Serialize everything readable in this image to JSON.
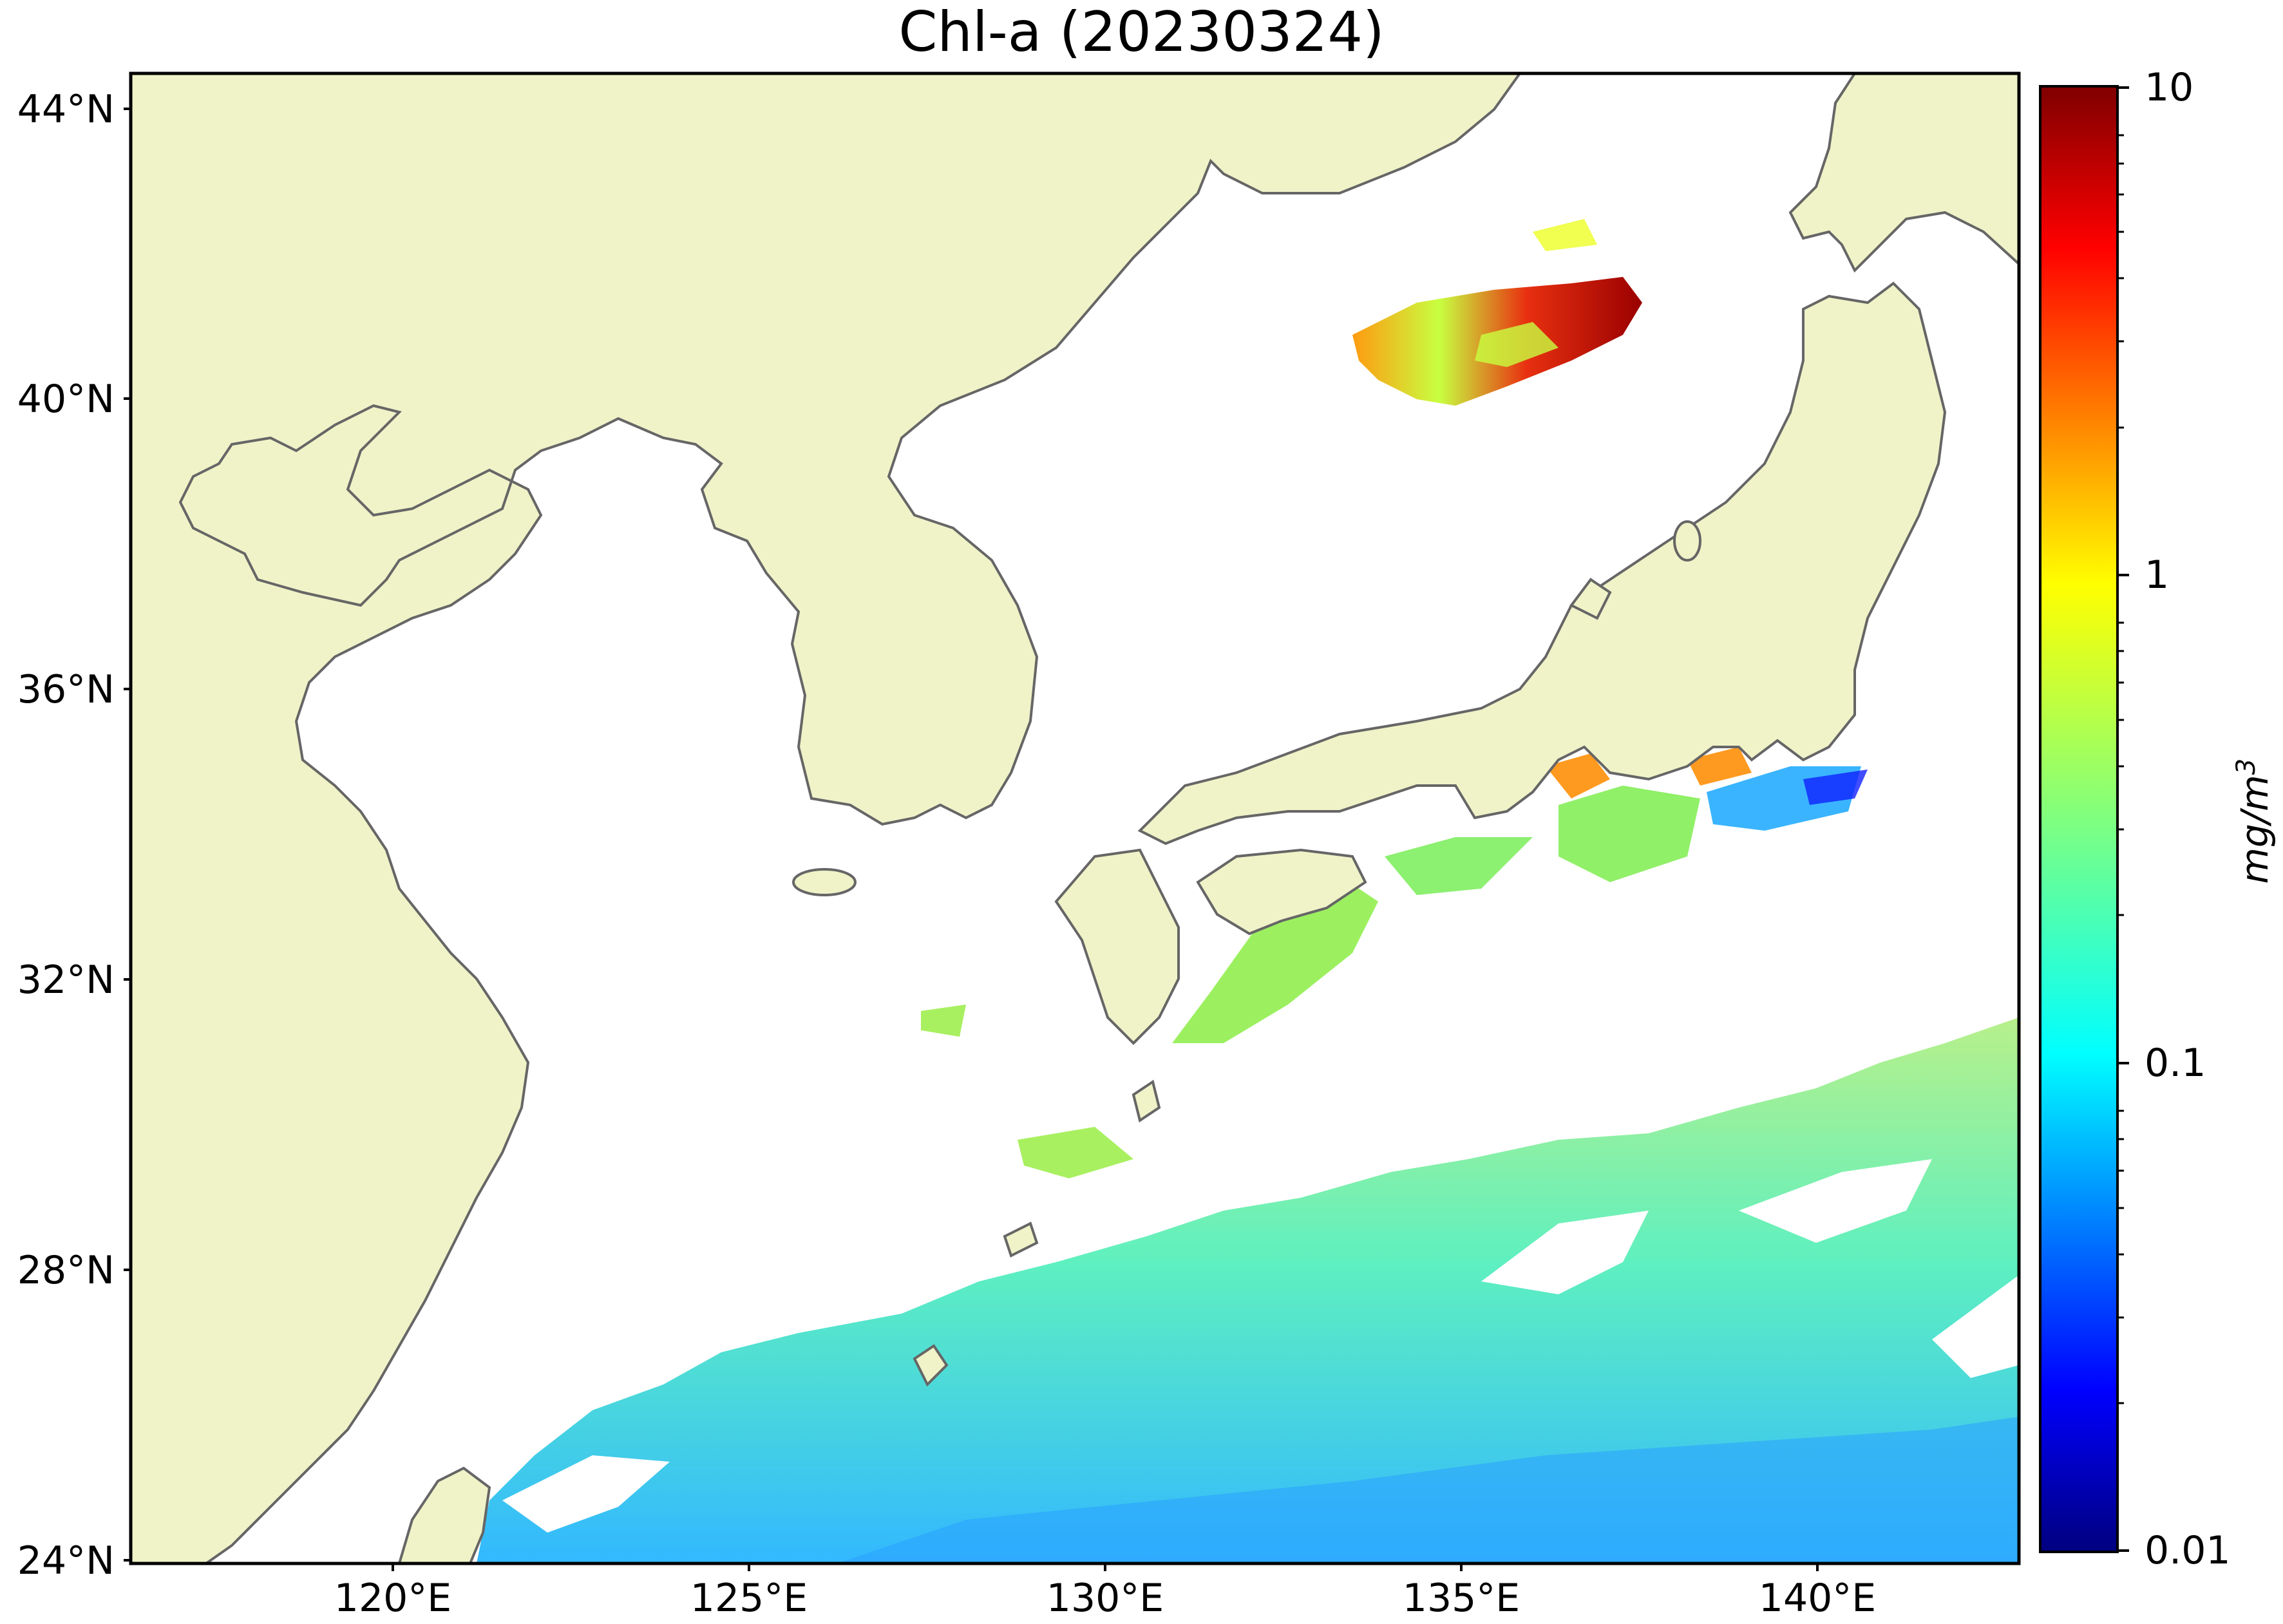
{
  "title": "Chl-a (20230324)",
  "map": {
    "lat_ticks": [
      "44°N",
      "40°N",
      "36°N",
      "32°N",
      "28°N",
      "24°N"
    ],
    "lon_ticks": [
      "120°E",
      "125°E",
      "130°E",
      "135°E",
      "140°E"
    ],
    "lat_range": [
      24,
      44.5
    ],
    "lon_range": [
      116.5,
      143
    ]
  },
  "colorbar": {
    "scale": "log",
    "range": [
      0.01,
      10
    ],
    "tick_labels": [
      "10",
      "1",
      "0.1",
      "0.01"
    ],
    "unit": "mg/m³",
    "unit_parts": {
      "base": "mg/m",
      "sup": "3"
    },
    "colormap": "jet",
    "colors": [
      "#00007f",
      "#0000ff",
      "#007fff",
      "#00ffff",
      "#7fff7f",
      "#ffff00",
      "#ff7f00",
      "#ff0000",
      "#7f0000"
    ]
  },
  "style": {
    "land_color": "#f0f3c8",
    "coast_color": "#666666",
    "ocean_color": "#ffffff"
  }
}
